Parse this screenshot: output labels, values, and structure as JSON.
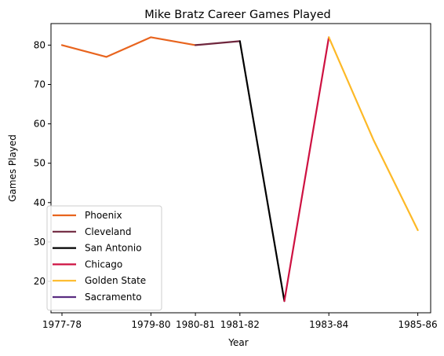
{
  "chart_data": {
    "type": "line",
    "title": "Mike Bratz Career Games Played",
    "xlabel": "Year",
    "ylabel": "Games Played",
    "ylim": [
      12,
      86
    ],
    "y_ticks": [
      20,
      30,
      40,
      50,
      60,
      70,
      80
    ],
    "x_tick_labels": [
      "1977-78",
      "1979-80",
      "1980-81",
      "1981-82",
      "1983-84",
      "1985-86"
    ],
    "grid": false,
    "legend_position": "lower-left",
    "series": [
      {
        "name": "Phoenix",
        "color": "#e8641e",
        "points": [
          {
            "x": "1977-78",
            "y": 80
          },
          {
            "x": "1978-79",
            "y": 77
          },
          {
            "x": "1979-80",
            "y": 82
          },
          {
            "x": "1980-81",
            "y": 80
          }
        ]
      },
      {
        "name": "Cleveland",
        "color": "#6f263d",
        "points": [
          {
            "x": "1980-81",
            "y": 80
          },
          {
            "x": "1981-82",
            "y": 81
          }
        ]
      },
      {
        "name": "San Antonio",
        "color": "#000000",
        "points": [
          {
            "x": "1981-82",
            "y": 81
          },
          {
            "x": "1982-83",
            "y": 15
          }
        ]
      },
      {
        "name": "Chicago",
        "color": "#ce1141",
        "points": [
          {
            "x": "1982-83",
            "y": 15
          },
          {
            "x": "1983-84",
            "y": 82
          }
        ]
      },
      {
        "name": "Golden State",
        "color": "#fdb927",
        "points": [
          {
            "x": "1983-84",
            "y": 82
          },
          {
            "x": "1984-85",
            "y": 56
          },
          {
            "x": "1985-86",
            "y": 33
          }
        ]
      },
      {
        "name": "Sacramento",
        "color": "#5a2d81",
        "points": []
      }
    ]
  }
}
